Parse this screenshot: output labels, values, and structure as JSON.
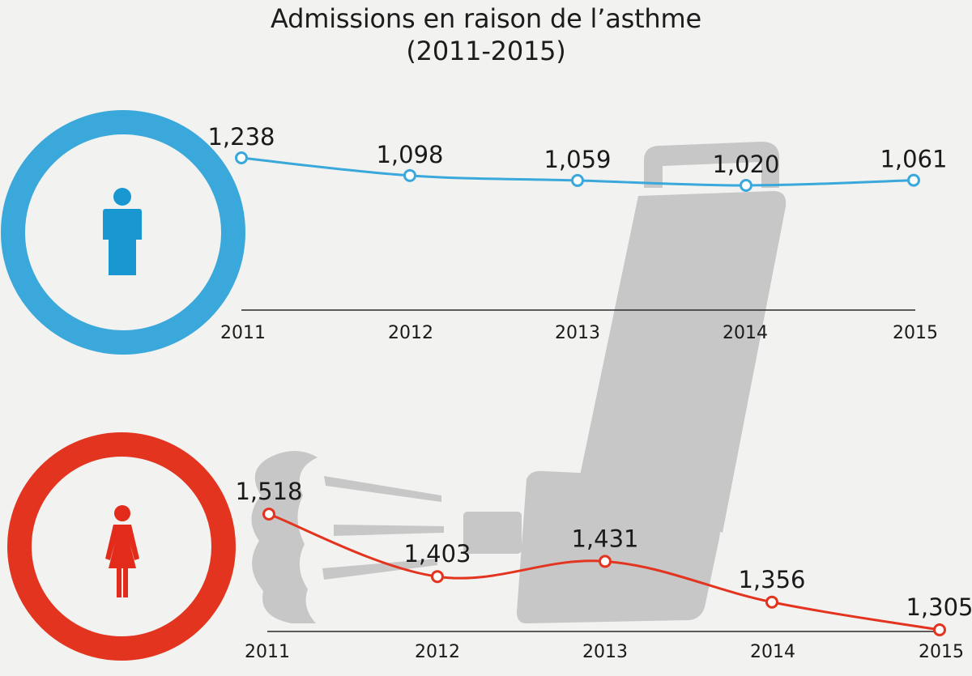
{
  "chart_data": {
    "type": "line",
    "title": "Admissions en raison de l’asthme",
    "subtitle": "(2011-2015)",
    "panels": [
      {
        "icon": "male-person-icon",
        "color": "#3aa8da",
        "x": [
          "2011",
          "2012",
          "2013",
          "2014",
          "2015"
        ],
        "values": [
          1238,
          1098,
          1059,
          1020,
          1061
        ],
        "value_labels": [
          "1,238",
          "1,098",
          "1,059",
          "1,020",
          "1,061"
        ],
        "ylim": [
          1000,
          1250
        ]
      },
      {
        "icon": "female-person-icon",
        "color": "#e3341f",
        "x": [
          "2011",
          "2012",
          "2013",
          "2014",
          "2015"
        ],
        "values": [
          1518,
          1403,
          1431,
          1356,
          1305
        ],
        "value_labels": [
          "1,518",
          "1,403",
          "1,431",
          "1,356",
          "1,305"
        ],
        "ylim": [
          1300,
          1520
        ]
      }
    ],
    "background_icon": "inhaler-icon",
    "grid": false,
    "legend": "none"
  }
}
